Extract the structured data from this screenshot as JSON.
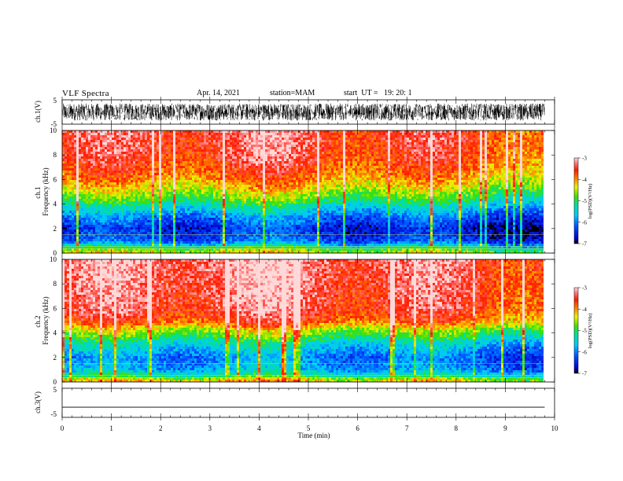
{
  "header": {
    "title": "VLF Spectra",
    "date": "Apr. 14, 2021",
    "station": "station=MAM",
    "start": "start  UT =   19: 20: 1"
  },
  "chart_data": [
    {
      "type": "line",
      "panel": "waveform-ch1",
      "ylabel": "ch.1(V)",
      "yticks": [
        "5",
        "-5"
      ],
      "ylim": [
        -5,
        5
      ],
      "xlim": [
        0,
        10
      ],
      "description_values": {
        "amplitude_range": [
          -3.5,
          3.5
        ],
        "data_end_min": 9.8
      }
    },
    {
      "type": "heatmap",
      "panel": "spectrogram-ch1",
      "ylabel": "ch.1\nFrequency (kHz)",
      "yticks": [
        "0",
        "2",
        "4",
        "6",
        "8",
        "10"
      ],
      "ylim": [
        0,
        10
      ],
      "xlim": [
        0,
        10
      ],
      "data_end_min": 9.8,
      "colorbar": {
        "label": "log(PSD)(V²/Hz)",
        "ticks": [
          "-3",
          "-4",
          "-5",
          "-6",
          "-7"
        ],
        "range": [
          -7,
          -3
        ]
      },
      "profile_log_psd": [
        {
          "f": 0.2,
          "v": -4.6
        },
        {
          "f": 0.5,
          "v": -5.4
        },
        {
          "f": 1.0,
          "v": -6.3
        },
        {
          "f": 2.0,
          "v": -6.6
        },
        {
          "f": 3.0,
          "v": -6.1
        },
        {
          "f": 4.0,
          "v": -5.3
        },
        {
          "f": 5.0,
          "v": -4.6
        },
        {
          "f": 6.0,
          "v": -4.1
        },
        {
          "f": 7.0,
          "v": -3.8
        },
        {
          "f": 8.0,
          "v": -3.6
        },
        {
          "f": 10.0,
          "v": -3.5
        }
      ]
    },
    {
      "type": "heatmap",
      "panel": "spectrogram-ch2",
      "ylabel": "ch.2\nFrequency (kHz)",
      "yticks": [
        "0",
        "2",
        "4",
        "6",
        "8",
        "10"
      ],
      "ylim": [
        0,
        10
      ],
      "xlim": [
        0,
        10
      ],
      "data_end_min": 9.8,
      "colorbar": {
        "label": "log(PSD)(V²/Hz)",
        "ticks": [
          "-3",
          "-4",
          "-5",
          "-6",
          "-7"
        ],
        "range": [
          -7,
          -3
        ]
      },
      "profile_log_psd": [
        {
          "f": 0.2,
          "v": -4.4
        },
        {
          "f": 0.5,
          "v": -5.2
        },
        {
          "f": 1.0,
          "v": -5.9
        },
        {
          "f": 2.0,
          "v": -6.1
        },
        {
          "f": 3.0,
          "v": -5.6
        },
        {
          "f": 4.0,
          "v": -4.8
        },
        {
          "f": 5.0,
          "v": -3.8
        },
        {
          "f": 6.0,
          "v": -3.5
        },
        {
          "f": 8.0,
          "v": -3.4
        },
        {
          "f": 10.0,
          "v": -3.3
        }
      ]
    },
    {
      "type": "line",
      "panel": "waveform-ch3",
      "ylabel": "ch.3(V)",
      "yticks": [
        "5",
        "-5"
      ],
      "ylim": [
        -5,
        5
      ],
      "xlim": [
        0,
        10
      ],
      "values": {
        "constant_v": -1.5
      },
      "xlabel": "Time (min)",
      "xticks": [
        "0",
        "1",
        "2",
        "3",
        "4",
        "5",
        "6",
        "7",
        "8",
        "9",
        "10"
      ]
    }
  ]
}
